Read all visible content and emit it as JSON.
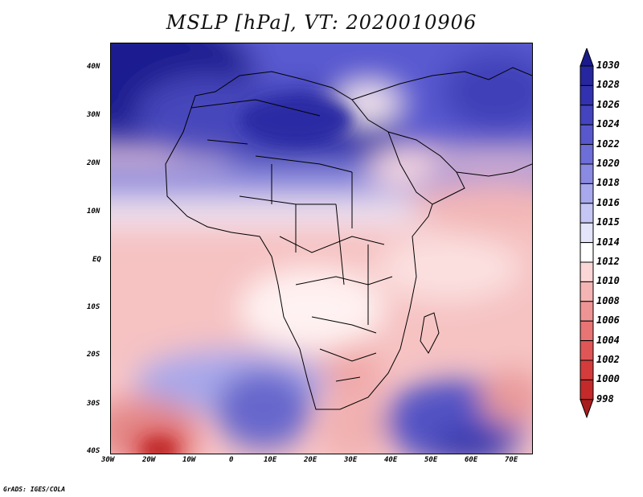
{
  "title": "MSLP [hPa], VT: 2020010906",
  "credit": "GrADS: IGES/COLA",
  "map": {
    "lat_ticks": [
      "40N",
      "30N",
      "20N",
      "10N",
      "EQ",
      "10S",
      "20S",
      "30S",
      "40S"
    ],
    "lon_ticks": [
      "30W",
      "20W",
      "10W",
      "0",
      "10E",
      "20E",
      "30E",
      "40E",
      "50E",
      "60E",
      "70E"
    ]
  },
  "colorbar": {
    "labels": [
      "1030",
      "1028",
      "1026",
      "1024",
      "1022",
      "1020",
      "1018",
      "1016",
      "1015",
      "1014",
      "1012",
      "1010",
      "1008",
      "1006",
      "1004",
      "1002",
      "1000",
      "998"
    ],
    "colors": [
      "#1a1a8c",
      "#26269e",
      "#3232b0",
      "#4444bf",
      "#5858cc",
      "#6e6ed8",
      "#8a8ae2",
      "#a8a8ec",
      "#c6c6f4",
      "#e4e4fa",
      "#ffffff",
      "#fbd6d6",
      "#f5b4b4",
      "#ef9494",
      "#e87474",
      "#e05656",
      "#d43c3c",
      "#c42a2a",
      "#a81e1e"
    ]
  }
}
